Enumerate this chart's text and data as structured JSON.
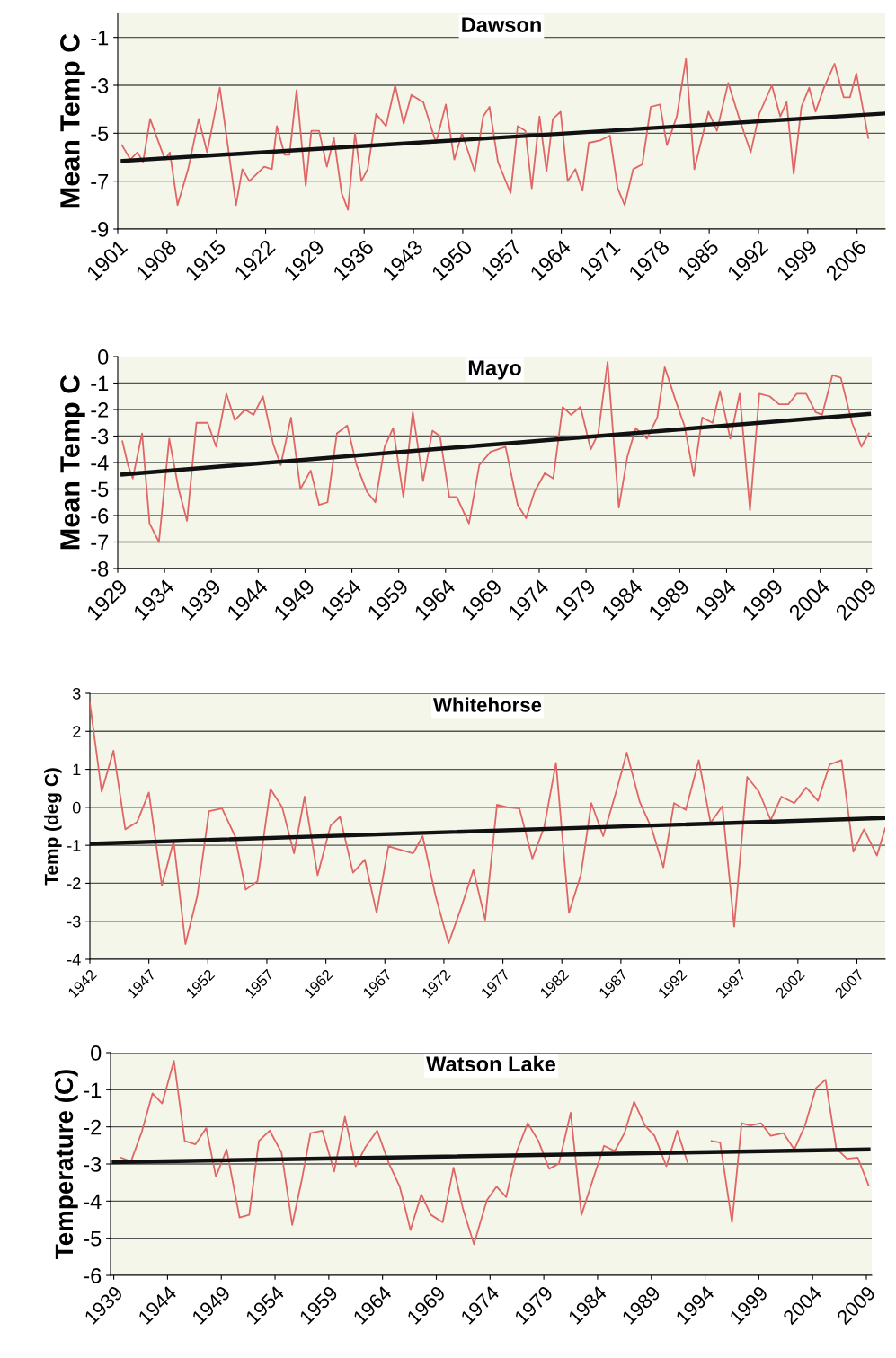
{
  "chart_data": [
    {
      "type": "line",
      "title": "Dawson",
      "ylabel": "Mean Temp C",
      "xlim": [
        1901,
        2010
      ],
      "xticks": [
        1901,
        1908,
        1915,
        1922,
        1929,
        1936,
        1943,
        1950,
        1957,
        1964,
        1971,
        1978,
        1985,
        1992,
        1999,
        2006
      ],
      "ylim": [
        -9,
        0
      ],
      "yticks": [
        -9,
        -7,
        -5,
        -3,
        -1
      ],
      "grid": "y",
      "series": [
        {
          "color": "#e06666",
          "x": [
            1901.6,
            1902.8,
            1903.8,
            1904.6,
            1905.6,
            1907.7,
            1908.4,
            1909.5,
            1911.0,
            1912.5,
            1913.7,
            1915.5,
            1917.8,
            1918.7,
            1919.7,
            1921.8,
            1922.9,
            1923.6,
            1924.7,
            1925.4,
            1926.4,
            1927.7,
            1928.5,
            1929.6,
            1930.7,
            1931.7,
            1932.8,
            1933.7,
            1934.7,
            1935.6,
            1936.5,
            1937.7,
            1939.1,
            1940.4,
            1941.6,
            1942.7,
            1944.4,
            1946.2,
            1947.6,
            1948.8,
            1949.9,
            1951.7,
            1952.9,
            1953.8,
            1955.0,
            1956.8,
            1957.8,
            1958.9,
            1959.8,
            1960.9,
            1961.9,
            1962.8,
            1963.9,
            1964.9,
            1966.0,
            1967.0,
            1967.9,
            1969.5,
            1970.9,
            1972.0,
            1973.0,
            1974.2,
            1975.5,
            1976.7,
            1978.0,
            1979.0,
            1980.4,
            1981.7,
            1982.9,
            1984.9,
            1986.1,
            1987.7,
            1989.4,
            1990.9,
            1992.1,
            1993.9,
            1995.1,
            1996.0,
            1997.0,
            1998.1,
            1999.2,
            2000.1,
            2001.3,
            2002.8,
            2004.1,
            2005.0,
            2005.9,
            2007.6
          ],
          "values": [
            -5.5,
            -6.1,
            -5.8,
            -6.2,
            -4.4,
            -6.1,
            -5.8,
            -8.0,
            -6.5,
            -4.4,
            -5.8,
            -3.1,
            -8.0,
            -6.5,
            -7.0,
            -6.4,
            -6.5,
            -4.7,
            -5.9,
            -5.9,
            -3.2,
            -7.2,
            -4.9,
            -4.9,
            -6.4,
            -5.2,
            -7.5,
            -8.2,
            -5.0,
            -7.0,
            -6.5,
            -4.2,
            -4.7,
            -3.0,
            -4.6,
            -3.4,
            -3.7,
            -5.4,
            -3.8,
            -6.1,
            -5.0,
            -6.6,
            -4.3,
            -3.9,
            -6.2,
            -7.5,
            -4.7,
            -4.9,
            -7.3,
            -4.3,
            -6.6,
            -4.4,
            -4.1,
            -7.0,
            -6.5,
            -7.4,
            -5.4,
            -5.3,
            -5.1,
            -7.3,
            -8.0,
            -6.5,
            -6.3,
            -3.9,
            -3.8,
            -5.5,
            -4.3,
            -1.9,
            -6.5,
            -4.1,
            -4.9,
            -2.9,
            -4.5,
            -5.8,
            -4.2,
            -3.0,
            -4.3,
            -3.7,
            -6.7,
            -3.9,
            -3.1,
            -4.1,
            -3.1,
            -2.1,
            -3.5,
            -3.5,
            -2.5,
            -5.2
          ]
        },
        {
          "type": "line",
          "color": "#111111",
          "x": [
            1901.7,
            2009.8
          ],
          "values": [
            -6.16,
            -4.18
          ]
        }
      ]
    },
    {
      "type": "line",
      "title": "Mayo",
      "ylabel": "Mean Temp C",
      "xlim": [
        1929,
        2009.5
      ],
      "xticks": [
        1929,
        1934,
        1939,
        1944,
        1949,
        1954,
        1959,
        1964,
        1969,
        1974,
        1979,
        1984,
        1989,
        1994,
        1999,
        2004,
        2009
      ],
      "ylim": [
        -8,
        0
      ],
      "yticks": [
        -8,
        -7,
        -6,
        -5,
        -4,
        -3,
        -2,
        -1,
        0
      ],
      "grid": "y",
      "series": [
        {
          "color": "#e06666",
          "x": [
            1929.5,
            1930.1,
            1930.6,
            1931.6,
            1932.4,
            1933.4,
            1934.5,
            1935.5,
            1936.4,
            1937.4,
            1938.6,
            1939.5,
            1940.6,
            1941.5,
            1942.6,
            1943.5,
            1944.5,
            1945.6,
            1946.4,
            1947.5,
            1948.5,
            1949.6,
            1950.5,
            1951.4,
            1952.4,
            1953.5,
            1954.5,
            1955.6,
            1956.5,
            1957.5,
            1958.4,
            1959.5,
            1960.5,
            1961.6,
            1962.6,
            1963.4,
            1964.4,
            1965.2,
            1966.5,
            1967.6,
            1968.8,
            1970.4,
            1971.7,
            1972.6,
            1973.5,
            1974.6,
            1975.5,
            1976.5,
            1977.4,
            1978.4,
            1979.5,
            1980.3,
            1981.3,
            1982.5,
            1983.4,
            1984.3,
            1985.5,
            1986.6,
            1987.4,
            1988.6,
            1989.5,
            1990.5,
            1991.4,
            1992.5,
            1993.3,
            1994.4,
            1995.4,
            1996.5,
            1997.5,
            1998.6,
            1999.6,
            2000.6,
            2001.5,
            2002.5,
            2003.5,
            2004.2,
            2005.3,
            2006.2,
            2007.4,
            2008.4,
            2009.2
          ],
          "values": [
            -3.2,
            -4.1,
            -4.6,
            -2.9,
            -6.3,
            -7.0,
            -3.1,
            -5.0,
            -6.2,
            -2.5,
            -2.5,
            -3.4,
            -1.4,
            -2.4,
            -2.0,
            -2.2,
            -1.5,
            -3.3,
            -4.1,
            -2.3,
            -5.0,
            -4.3,
            -5.6,
            -5.5,
            -2.9,
            -2.6,
            -4.1,
            -5.1,
            -5.5,
            -3.4,
            -2.7,
            -5.3,
            -2.1,
            -4.7,
            -2.8,
            -3.0,
            -5.3,
            -5.3,
            -6.3,
            -4.1,
            -3.6,
            -3.4,
            -5.6,
            -6.1,
            -5.1,
            -4.4,
            -4.6,
            -1.9,
            -2.2,
            -1.9,
            -3.5,
            -2.9,
            -0.2,
            -5.7,
            -3.8,
            -2.7,
            -3.1,
            -2.3,
            -0.4,
            -1.7,
            -2.6,
            -4.5,
            -2.3,
            -2.5,
            -1.3,
            -3.1,
            -1.4,
            -5.8,
            -1.4,
            -1.5,
            -1.8,
            -1.8,
            -1.4,
            -1.4,
            -2.1,
            -2.2,
            -0.7,
            -0.8,
            -2.5,
            -3.4,
            -2.9
          ]
        },
        {
          "type": "line",
          "color": "#111111",
          "x": [
            1929.5,
            2009.2
          ],
          "values": [
            -4.45,
            -2.17
          ]
        }
      ]
    },
    {
      "type": "line",
      "title": "Whitehorse",
      "ylabel": "Temp (deg C)",
      "xlim": [
        1942,
        2009.4
      ],
      "xticks": [
        1942,
        1947,
        1952,
        1957,
        1962,
        1967,
        1972,
        1977,
        1982,
        1987,
        1992,
        1997,
        2002,
        2007
      ],
      "ylim": [
        -4,
        3
      ],
      "yticks": [
        -4,
        -3,
        -2,
        -1,
        0,
        1,
        2,
        3
      ],
      "grid": "y",
      "series": [
        {
          "color": "#e06666",
          "x": [
            1942.0,
            1943.0,
            1944.0,
            1945.0,
            1946.0,
            1947.0,
            1948.1,
            1949.1,
            1950.1,
            1951.1,
            1952.1,
            1953.2,
            1954.3,
            1955.2,
            1956.2,
            1957.3,
            1958.3,
            1959.3,
            1960.2,
            1961.3,
            1962.4,
            1963.2,
            1964.3,
            1965.3,
            1966.3,
            1967.3,
            1969.4,
            1970.2,
            1971.3,
            1972.4,
            1973.5,
            1974.5,
            1975.5,
            1976.5,
            1977.4,
            1978.4,
            1979.5,
            1980.5,
            1981.5,
            1982.6,
            1983.6,
            1984.5,
            1985.5,
            1986.6,
            1987.5,
            1988.6,
            1989.6,
            1990.6,
            1991.5,
            1992.5,
            1993.6,
            1994.6,
            1995.6,
            1996.6,
            1997.7,
            1998.7,
            1999.7,
            2000.6,
            2001.7,
            2002.7,
            2003.7,
            2004.7,
            2005.7,
            2006.7,
            2007.6,
            2008.7,
            2009.4
          ],
          "values": [
            2.75,
            0.41,
            1.49,
            -0.58,
            -0.39,
            0.39,
            -2.06,
            -0.89,
            -3.6,
            -2.34,
            -0.1,
            -0.03,
            -0.76,
            -2.17,
            -1.95,
            0.48,
            0.0,
            -1.21,
            0.28,
            -1.79,
            -0.48,
            -0.25,
            -1.72,
            -1.38,
            -2.78,
            -1.03,
            -1.21,
            -0.76,
            -2.34,
            -3.58,
            -2.61,
            -1.65,
            -2.96,
            0.07,
            0.0,
            -0.03,
            -1.35,
            -0.52,
            1.17,
            -2.78,
            -1.79,
            0.11,
            -0.76,
            0.41,
            1.44,
            0.14,
            -0.55,
            -1.58,
            0.11,
            -0.07,
            1.24,
            -0.41,
            0.03,
            -3.14,
            0.8,
            0.41,
            -0.34,
            0.28,
            0.11,
            0.52,
            0.17,
            1.13,
            1.24,
            -1.17,
            -0.58,
            -1.27,
            -0.55
          ]
        },
        {
          "type": "line",
          "color": "#111111",
          "x": [
            1942.0,
            2009.4
          ],
          "values": [
            -0.96,
            -0.28
          ]
        }
      ]
    },
    {
      "type": "line",
      "title": "Watson Lake",
      "ylabel": "Temperature (C)",
      "xlim": [
        1938.7,
        2009.5
      ],
      "xticks": [
        1939,
        1944,
        1949,
        1954,
        1959,
        1964,
        1969,
        1974,
        1979,
        1984,
        1989,
        1994,
        1999,
        2004,
        2009
      ],
      "ylim": [
        -6,
        0
      ],
      "yticks": [
        -6,
        -5,
        -4,
        -3,
        -2,
        -1,
        0
      ],
      "grid": "y",
      "series": [
        {
          "color": "#e06666",
          "x": [
            1939.7,
            1940.6,
            1941.6,
            1942.6,
            1943.5,
            1944.6,
            1945.6,
            1946.6,
            1947.6,
            1948.5,
            1949.5,
            1950.7,
            1951.6,
            1952.5,
            1953.5,
            1954.6,
            1955.6,
            1956.5,
            1957.3,
            1958.4,
            1959.5,
            1960.5,
            1961.5,
            1962.4,
            1963.5,
            1964.6,
            1965.6,
            1966.6,
            1967.6,
            1968.5,
            1969.6,
            1970.6,
            1971.5,
            1972.5,
            1973.7,
            1974.6,
            1975.5,
            1976.5,
            1977.5,
            1978.5,
            1979.5,
            1980.4,
            1981.5,
            1982.5,
            1983.5,
            1984.6,
            1985.6,
            1986.5,
            1987.4,
            1988.4,
            1989.3,
            1990.4,
            1991.4,
            1992.4,
            1993.5,
            1994.6,
            1995.4,
            1996.5,
            1997.4,
            1998.2,
            1999.2,
            2000.1,
            2001.3,
            2002.3,
            2003.3,
            2004.3,
            2005.2,
            2006.2,
            2007.2,
            2008.2,
            2009.2
          ],
          "values": [
            -2.83,
            -2.93,
            -2.14,
            -1.1,
            -1.37,
            -0.22,
            -2.38,
            -2.47,
            -2.03,
            -3.34,
            -2.61,
            -4.44,
            -4.37,
            -2.38,
            -2.1,
            -2.69,
            -4.64,
            -3.41,
            -2.17,
            -2.1,
            -3.2,
            -1.73,
            -3.06,
            -2.55,
            -2.1,
            -2.99,
            -3.61,
            -4.78,
            -3.82,
            -4.37,
            -4.57,
            -3.1,
            -4.23,
            -5.16,
            -3.98,
            -3.61,
            -3.89,
            -2.65,
            -1.9,
            -2.38,
            -3.13,
            -2.99,
            -1.62,
            -4.37,
            -3.48,
            -2.51,
            -2.65,
            -2.17,
            -1.32,
            -1.96,
            -2.24,
            -3.06,
            -2.1,
            -2.99,
            null,
            -2.38,
            -2.42,
            -4.57,
            -1.9,
            -1.96,
            -1.9,
            -2.24,
            -2.17,
            -2.61,
            -1.96,
            -0.96,
            -0.73,
            -2.58,
            -2.86,
            -2.83,
            -3.57
          ]
        },
        {
          "type": "line",
          "color": "#111111",
          "x": [
            1939.0,
            2009.2
          ],
          "values": [
            -2.95,
            -2.61
          ]
        }
      ]
    }
  ]
}
